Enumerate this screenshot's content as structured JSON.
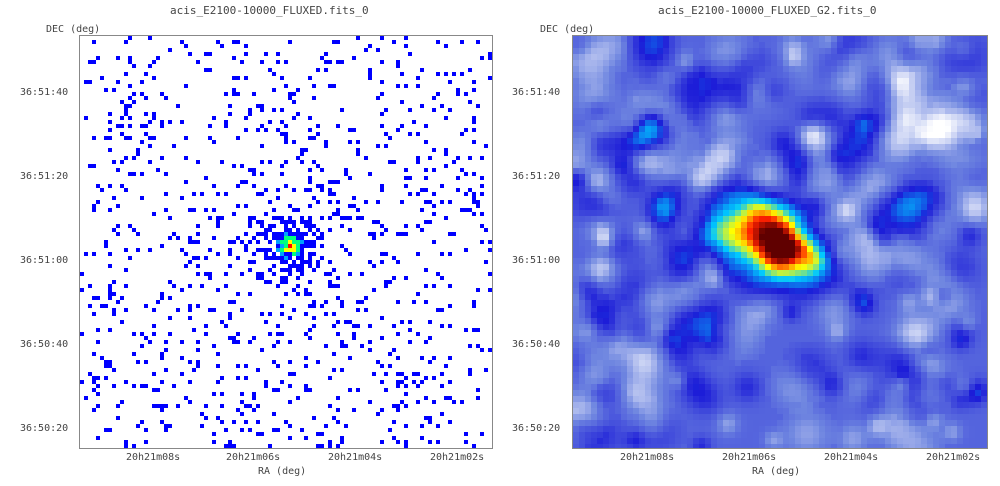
{
  "chart_data": [
    {
      "type": "heatmap",
      "title": "acis_E2100-10000_FLUXED.fits_0",
      "xlabel": "RA (deg)",
      "ylabel": "DEC (deg)",
      "x_ticks": [
        "20h21m08s",
        "20h21m06s",
        "20h21m04s",
        "20h21m02s"
      ],
      "y_ticks": [
        "36:51:40",
        "36:51:20",
        "36:51:00",
        "36:50:40",
        "36:50:20"
      ],
      "style": "sparse-counts",
      "background": "#ffffff",
      "colormap": [
        "#0000ff",
        "#00a0ff",
        "#00ff80",
        "#ffff00",
        "#ff0000"
      ]
    },
    {
      "type": "heatmap",
      "title": "acis_E2100-10000_FLUXED_G2.fits_0",
      "xlabel": "RA (deg)",
      "ylabel": "DEC (deg)",
      "x_ticks": [
        "20h21m08s",
        "20h21m06s",
        "20h21m04s",
        "20h21m02s"
      ],
      "y_ticks": [
        "36:51:40",
        "36:51:20",
        "36:51:00",
        "36:50:40",
        "36:50:20"
      ],
      "style": "smoothed",
      "background": "#ffffff",
      "colormap": [
        "#ffffff",
        "#6f86e0",
        "#1c1cd8",
        "#00c8ff",
        "#ffff00",
        "#ff2000",
        "#600000"
      ]
    }
  ]
}
